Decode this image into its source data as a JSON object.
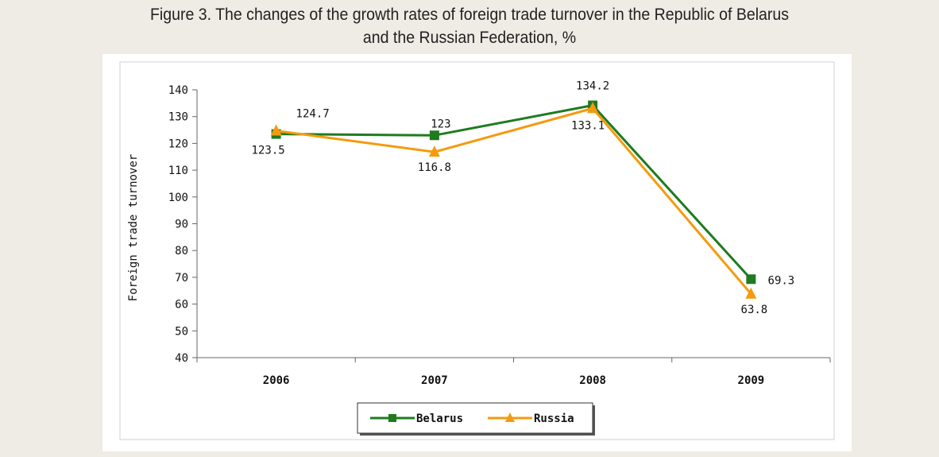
{
  "figure": {
    "caption_line1": "Figure 3. The changes of the growth rates of foreign trade turnover in the Republic of Belarus",
    "caption_line2": "and the Russian Federation, %"
  },
  "chart_data": {
    "type": "line",
    "categories": [
      "2006",
      "2007",
      "2008",
      "2009"
    ],
    "ylabel": "Foreign trade turnover",
    "xlabel": "",
    "ylim": [
      40,
      140
    ],
    "yticks": [
      40,
      50,
      60,
      70,
      80,
      90,
      100,
      110,
      120,
      130,
      140
    ],
    "grid": false,
    "legend_position": "bottom",
    "series": [
      {
        "name": "Belarus",
        "values": [
          123.5,
          123,
          134.2,
          69.3
        ],
        "labels": [
          "123.5",
          "123",
          "134.2",
          "69.3"
        ],
        "color": "#1e7b1e",
        "marker": "square"
      },
      {
        "name": "Russia",
        "values": [
          124.7,
          116.8,
          133.1,
          63.8
        ],
        "labels": [
          "124.7",
          "116.8",
          "133.1",
          "63.8"
        ],
        "color": "#f59a0e",
        "marker": "triangle"
      }
    ]
  }
}
